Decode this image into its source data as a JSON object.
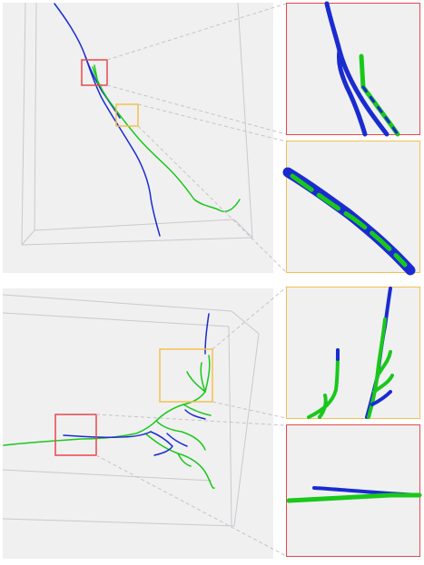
{
  "colors": {
    "background": "#f0f0f1",
    "red_box": "#e8474a",
    "orange_box": "#f2c14e",
    "blue_trace": "#1a2bd0",
    "green_trace": "#19c81a",
    "bbox_lines": "#c9c9cf",
    "connector": "#c4c4c4"
  },
  "panels": [
    {
      "name": "top-3d-view",
      "insets": [
        "red",
        "orange"
      ]
    },
    {
      "name": "bottom-3d-view",
      "insets": [
        "orange",
        "red"
      ]
    }
  ]
}
